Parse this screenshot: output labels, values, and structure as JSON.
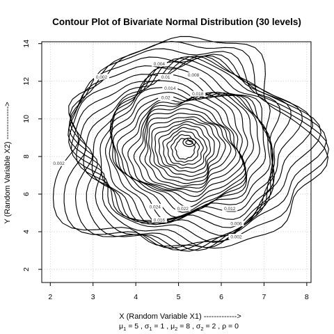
{
  "chart_data": {
    "type": "contour",
    "title": "Contour Plot of Bivariate Normal Distribution (30 levels)",
    "xlabel": "X (Random Variable X1) ------------->",
    "ylabel": "Y (Random Variable X2) ------------->",
    "subtitle_parts": [
      {
        "kind": "param",
        "sym": "μ",
        "sub": "1",
        "value": "5"
      },
      {
        "kind": "param",
        "sym": "σ",
        "sub": "1",
        "value": "1"
      },
      {
        "kind": "param",
        "sym": "μ",
        "sub": "2",
        "value": "8"
      },
      {
        "kind": "param",
        "sym": "σ",
        "sub": "2",
        "value": "2"
      },
      {
        "kind": "param",
        "sym": "ρ",
        "sub": "",
        "value": "0"
      }
    ],
    "xlim": [
      1.8,
      8.1
    ],
    "ylim": [
      1.3,
      14.1
    ],
    "xticks": [
      "2",
      "3",
      "4",
      "5",
      "6",
      "7",
      "8"
    ],
    "yticks": [
      "2",
      "4",
      "6",
      "8",
      "10",
      "12",
      "14"
    ],
    "grid": true,
    "levels": 30,
    "center": {
      "x": 5.15,
      "y": 8.4
    },
    "level_labels": [
      {
        "text": "0.002",
        "x": 3.2,
        "y": 12.2
      },
      {
        "text": "0.004",
        "x": 4.55,
        "y": 12.9
      },
      {
        "text": "0.01",
        "x": 4.7,
        "y": 12.2
      },
      {
        "text": "0.008",
        "x": 5.35,
        "y": 12.3
      },
      {
        "text": "0.014",
        "x": 4.8,
        "y": 11.6
      },
      {
        "text": "0.018",
        "x": 5.45,
        "y": 11.3
      },
      {
        "text": "0.02",
        "x": 4.7,
        "y": 11.1
      },
      {
        "text": "0.002",
        "x": 2.2,
        "y": 7.6
      },
      {
        "text": "0.012",
        "x": 6.2,
        "y": 5.2
      },
      {
        "text": "0.006",
        "x": 6.35,
        "y": 4.4
      },
      {
        "text": "0.002",
        "x": 6.35,
        "y": 3.7
      },
      {
        "text": "0.022",
        "x": 5.1,
        "y": 5.2
      },
      {
        "text": "0.024",
        "x": 4.45,
        "y": 5.3
      },
      {
        "text": "0.016",
        "x": 4.55,
        "y": 4.6
      }
    ]
  }
}
